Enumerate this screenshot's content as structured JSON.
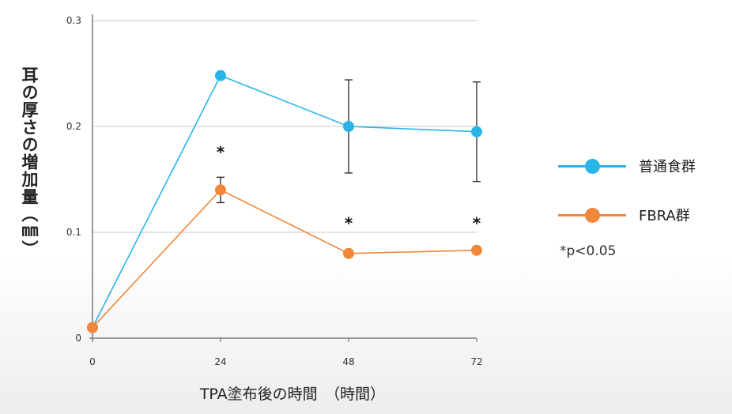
{
  "chart_data": {
    "type": "line",
    "ylabel": "耳の厚さの増加量（㎜）",
    "xlabel": "TPA塗布後の時間　（時間）",
    "x": [
      0,
      24,
      48,
      72
    ],
    "xticks": [
      "0",
      "24",
      "48",
      "72"
    ],
    "yticks": [
      "0",
      "0.1",
      "0.2",
      "0.3"
    ],
    "ylim": [
      0,
      0.3
    ],
    "grid": true,
    "legend": "right",
    "series": [
      {
        "name": "普通食群",
        "color": "#29b5e8",
        "values": [
          0.01,
          0.248,
          0.2,
          0.195
        ],
        "error": [
          null,
          null,
          0.044,
          0.047
        ]
      },
      {
        "name": "FBRA群",
        "color": "#f0873a",
        "values": [
          0.01,
          0.14,
          0.08,
          0.083
        ],
        "error": [
          null,
          0.012,
          null,
          null
        ]
      }
    ],
    "significance": [
      {
        "x": 24,
        "y": 0.175,
        "label": "*"
      },
      {
        "x": 48,
        "y": 0.108,
        "label": "*"
      },
      {
        "x": 72,
        "y": 0.108,
        "label": "*"
      }
    ],
    "note": "*p<0.05"
  }
}
